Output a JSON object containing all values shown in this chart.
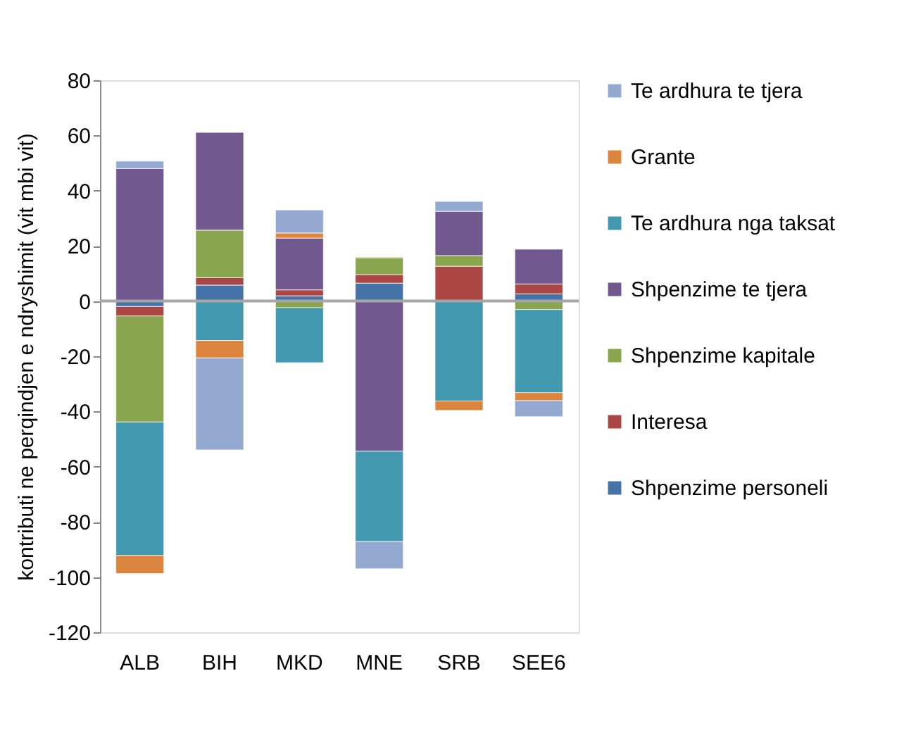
{
  "chart_data": {
    "type": "bar",
    "stacked": true,
    "ylabel": "kontributi ne perqindjen e ndryshimit (vit mbi vit)",
    "categories": [
      "ALB",
      "BIH",
      "MKD",
      "MNE",
      "SRB",
      "SEE6"
    ],
    "ylim": [
      -120,
      80
    ],
    "yticks": [
      -120,
      -100,
      -80,
      -60,
      -40,
      -20,
      0,
      20,
      40,
      60,
      80
    ],
    "grid": false,
    "legend": "right",
    "ref_lines": [
      {
        "axis": "y",
        "value": 0,
        "color": "#a6a6a6"
      }
    ],
    "series": [
      {
        "name": "Shpenzime personeli",
        "color": "#4572a7",
        "values": [
          -2,
          5.8,
          1.9,
          6.5,
          null,
          2.6
        ]
      },
      {
        "name": "Interesa",
        "color": "#aa4643",
        "values": [
          -3.4,
          2.7,
          2.2,
          3.1,
          12.6,
          3.6
        ]
      },
      {
        "name": "Shpenzime kapitale",
        "color": "#89a54e",
        "values": [
          -38.4,
          17.2,
          -2.4,
          6.1,
          3.9,
          -3.1
        ]
      },
      {
        "name": "Shpenzime te tjera",
        "color": "#71588f",
        "values": [
          48,
          35.4,
          18.7,
          -54.4,
          16,
          12.6
        ]
      },
      {
        "name": "Te ardhura nga taksat",
        "color": "#4198af",
        "values": [
          -48.3,
          -14.3,
          -19.9,
          -32.7,
          -36.2,
          -30.1
        ]
      },
      {
        "name": "Grante",
        "color": "#db843d",
        "values": [
          -6.6,
          -6.3,
          1.9,
          0.3,
          -3.4,
          -2.9
        ]
      },
      {
        "name": "Te ardhura te tjera",
        "color": "#93a9cf",
        "values": [
          2.7,
          -33.3,
          8.3,
          -9.9,
          3.6,
          -5.8
        ]
      }
    ]
  }
}
